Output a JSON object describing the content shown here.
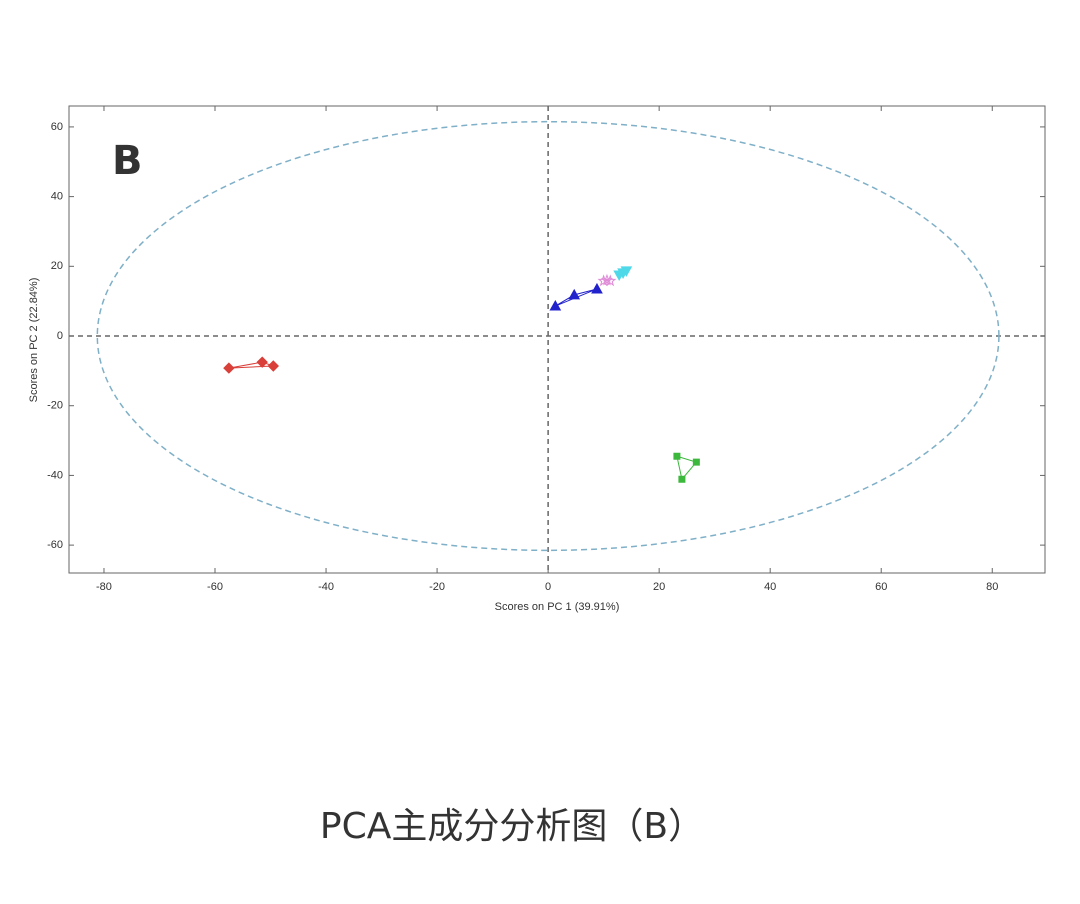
{
  "chart_data": {
    "type": "scatter",
    "panel_label": "B",
    "xlabel": "Scores on PC 1 (39.91%)",
    "ylabel": "Scores on PC 2 (22.84%)",
    "xlim": [
      -86.3,
      89.5
    ],
    "ylim": [
      -68,
      66
    ],
    "xticks": [
      -80,
      -60,
      -40,
      -20,
      0,
      20,
      40,
      60,
      80
    ],
    "yticks": [
      -60,
      -40,
      -20,
      0,
      20,
      40,
      60
    ],
    "zero_lines": true,
    "confidence_ellipse": {
      "x_radius": 81.2,
      "y_radius": 61.5,
      "color": "#7fb0c8"
    },
    "series": [
      {
        "color": "#d9403a",
        "marker": "diamond",
        "x": [
          -57.5,
          -51.5,
          -49.5
        ],
        "values": [
          -9.2,
          -7.5,
          -8.6
        ]
      },
      {
        "color": "#2222cc",
        "marker": "triangle",
        "x": [
          1.3,
          4.7,
          8.8
        ],
        "values": [
          8.6,
          11.8,
          13.5
        ]
      },
      {
        "color": "#e08ad8",
        "marker": "star",
        "x": [
          10.0,
          10.6,
          11.2
        ],
        "values": [
          15.8,
          16.0,
          15.8
        ]
      },
      {
        "color": "#4fd8e8",
        "marker": "triangle-down",
        "x": [
          12.8,
          13.5,
          14.1
        ],
        "values": [
          17.5,
          18.1,
          18.7
        ]
      },
      {
        "color": "#3cb83c",
        "marker": "square",
        "x": [
          23.2,
          26.7,
          24.1
        ],
        "values": [
          -34.5,
          -36.2,
          -41.1
        ]
      }
    ]
  },
  "caption": "PCA主成分分析图（B）"
}
